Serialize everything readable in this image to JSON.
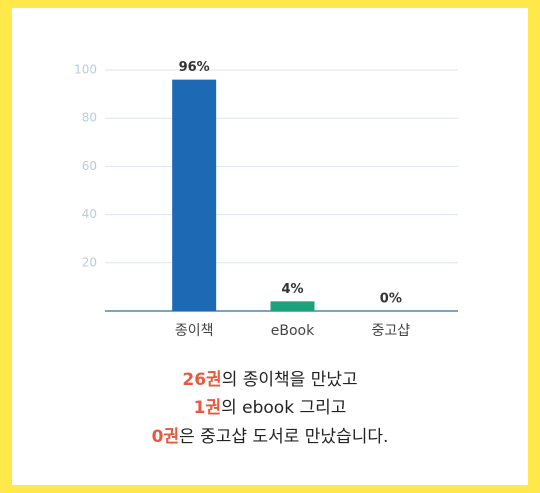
{
  "chart_data": {
    "type": "bar",
    "categories": [
      "종이책",
      "eBook",
      "중고샵"
    ],
    "values": [
      96,
      4,
      0
    ],
    "value_labels": [
      "96%",
      "4%",
      "0%"
    ],
    "colors": [
      "#1e69b3",
      "#1ba27a",
      "#1e69b3"
    ],
    "ylim": [
      0,
      100
    ],
    "yticks": [
      20,
      40,
      60,
      80,
      100
    ],
    "grid": true
  },
  "caption": [
    {
      "highlight": "26권",
      "text": "의 종이책을 만났고"
    },
    {
      "highlight": "1권",
      "text": "의 ebook 그리고"
    },
    {
      "highlight": "0권",
      "text": "은 중고샵 도서로 만났습니다."
    }
  ]
}
